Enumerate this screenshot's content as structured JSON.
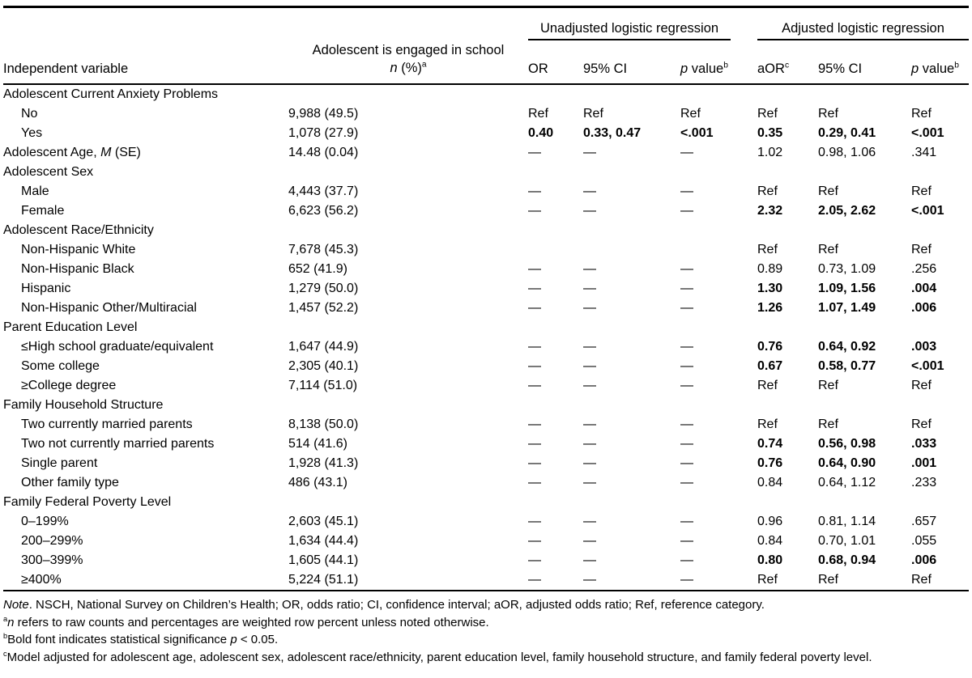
{
  "page": {
    "background": "#ffffff",
    "text_color": "#000000"
  },
  "table": {
    "header": {
      "independent_variable": "Independent variable",
      "engaged_line1": "Adolescent is engaged in school",
      "engaged_n_italic": "n",
      "engaged_rest": " (%)",
      "engaged_sup": "a",
      "group_unadjusted": "Unadjusted logistic regression",
      "group_adjusted": "Adjusted logistic regression",
      "or_label": "OR",
      "ci_label": "95% CI",
      "p_italic": "p",
      "p_rest": " value",
      "p_sup": "b",
      "aor_label": "aOR",
      "aor_sup": "c",
      "ci2_label": "95% CI",
      "p2_italic": "p",
      "p2_rest": " value",
      "p2_sup": "b"
    },
    "rows": [
      {
        "label": [
          {
            "t": "Adolescent Current Anxiety Problems"
          }
        ],
        "indent": false,
        "n": "",
        "u": [
          "",
          "",
          ""
        ],
        "a": [
          "",
          "",
          ""
        ],
        "bold_u": false,
        "bold_a": false
      },
      {
        "label": [
          {
            "t": "No"
          }
        ],
        "indent": true,
        "n": "9,988 (49.5)",
        "u": [
          "Ref",
          "Ref",
          "Ref"
        ],
        "a": [
          "Ref",
          "Ref",
          "Ref"
        ],
        "bold_u": false,
        "bold_a": false
      },
      {
        "label": [
          {
            "t": "Yes"
          }
        ],
        "indent": true,
        "n": "1,078 (27.9)",
        "u": [
          "0.40",
          "0.33, 0.47",
          "<.001"
        ],
        "a": [
          "0.35",
          "0.29, 0.41",
          "<.001"
        ],
        "bold_u": true,
        "bold_a": true
      },
      {
        "label": [
          {
            "t": "Adolescent Age, "
          },
          {
            "t": "M",
            "i": true
          },
          {
            "t": " (SE)"
          }
        ],
        "indent": false,
        "n": "14.48 (0.04)",
        "u": [
          "—",
          "—",
          "—"
        ],
        "a": [
          "1.02",
          "0.98, 1.06",
          ".341"
        ],
        "bold_u": false,
        "bold_a": false
      },
      {
        "label": [
          {
            "t": "Adolescent Sex"
          }
        ],
        "indent": false,
        "n": "",
        "u": [
          "",
          "",
          ""
        ],
        "a": [
          "",
          "",
          ""
        ],
        "bold_u": false,
        "bold_a": false
      },
      {
        "label": [
          {
            "t": "Male"
          }
        ],
        "indent": true,
        "n": "4,443 (37.7)",
        "u": [
          "—",
          "—",
          "—"
        ],
        "a": [
          "Ref",
          "Ref",
          "Ref"
        ],
        "bold_u": false,
        "bold_a": false
      },
      {
        "label": [
          {
            "t": "Female"
          }
        ],
        "indent": true,
        "n": "6,623 (56.2)",
        "u": [
          "—",
          "—",
          "—"
        ],
        "a": [
          "2.32",
          "2.05, 2.62",
          "<.001"
        ],
        "bold_u": false,
        "bold_a": true
      },
      {
        "label": [
          {
            "t": "Adolescent Race/Ethnicity"
          }
        ],
        "indent": false,
        "n": "",
        "u": [
          "",
          "",
          ""
        ],
        "a": [
          "",
          "",
          ""
        ],
        "bold_u": false,
        "bold_a": false
      },
      {
        "label": [
          {
            "t": "Non-Hispanic White"
          }
        ],
        "indent": true,
        "n": "7,678 (45.3)",
        "u": [
          "",
          "",
          ""
        ],
        "a": [
          "Ref",
          "Ref",
          "Ref"
        ],
        "bold_u": false,
        "bold_a": false
      },
      {
        "label": [
          {
            "t": "Non-Hispanic Black"
          }
        ],
        "indent": true,
        "n": "652 (41.9)",
        "u": [
          "—",
          "—",
          "—"
        ],
        "a": [
          "0.89",
          "0.73, 1.09",
          ".256"
        ],
        "bold_u": false,
        "bold_a": false
      },
      {
        "label": [
          {
            "t": "Hispanic"
          }
        ],
        "indent": true,
        "n": "1,279 (50.0)",
        "u": [
          "—",
          "—",
          "—"
        ],
        "a": [
          "1.30",
          "1.09, 1.56",
          ".004"
        ],
        "bold_u": false,
        "bold_a": true
      },
      {
        "label": [
          {
            "t": "Non-Hispanic Other/Multiracial"
          }
        ],
        "indent": true,
        "n": "1,457 (52.2)",
        "u": [
          "—",
          "—",
          "—"
        ],
        "a": [
          "1.26",
          "1.07, 1.49",
          ".006"
        ],
        "bold_u": false,
        "bold_a": true
      },
      {
        "label": [
          {
            "t": "Parent Education Level"
          }
        ],
        "indent": false,
        "n": "",
        "u": [
          "",
          "",
          ""
        ],
        "a": [
          "",
          "",
          ""
        ],
        "bold_u": false,
        "bold_a": false
      },
      {
        "label": [
          {
            "t": "≤High school graduate/equivalent"
          }
        ],
        "indent": true,
        "n": "1,647 (44.9)",
        "u": [
          "—",
          "—",
          "—"
        ],
        "a": [
          "0.76",
          "0.64, 0.92",
          ".003"
        ],
        "bold_u": false,
        "bold_a": true
      },
      {
        "label": [
          {
            "t": "Some college"
          }
        ],
        "indent": true,
        "n": "2,305 (40.1)",
        "u": [
          "—",
          "—",
          "—"
        ],
        "a": [
          "0.67",
          "0.58, 0.77",
          "<.001"
        ],
        "bold_u": false,
        "bold_a": true
      },
      {
        "label": [
          {
            "t": "≥College degree"
          }
        ],
        "indent": true,
        "n": "7,114 (51.0)",
        "u": [
          "—",
          "—",
          "—"
        ],
        "a": [
          "Ref",
          "Ref",
          "Ref"
        ],
        "bold_u": false,
        "bold_a": false
      },
      {
        "label": [
          {
            "t": "Family Household Structure"
          }
        ],
        "indent": false,
        "n": "",
        "u": [
          "",
          "",
          ""
        ],
        "a": [
          "",
          "",
          ""
        ],
        "bold_u": false,
        "bold_a": false
      },
      {
        "label": [
          {
            "t": "Two currently married parents"
          }
        ],
        "indent": true,
        "n": "8,138 (50.0)",
        "u": [
          "—",
          "—",
          "—"
        ],
        "a": [
          "Ref",
          "Ref",
          "Ref"
        ],
        "bold_u": false,
        "bold_a": false
      },
      {
        "label": [
          {
            "t": "Two not currently married parents"
          }
        ],
        "indent": true,
        "n": "514 (41.6)",
        "u": [
          "—",
          "—",
          "—"
        ],
        "a": [
          "0.74",
          "0.56, 0.98",
          ".033"
        ],
        "bold_u": false,
        "bold_a": true
      },
      {
        "label": [
          {
            "t": "Single parent"
          }
        ],
        "indent": true,
        "n": "1,928 (41.3)",
        "u": [
          "—",
          "—",
          "—"
        ],
        "a": [
          "0.76",
          "0.64, 0.90",
          ".001"
        ],
        "bold_u": false,
        "bold_a": true
      },
      {
        "label": [
          {
            "t": "Other family type"
          }
        ],
        "indent": true,
        "n": "486 (43.1)",
        "u": [
          "—",
          "—",
          "—"
        ],
        "a": [
          "0.84",
          "0.64, 1.12",
          ".233"
        ],
        "bold_u": false,
        "bold_a": false
      },
      {
        "label": [
          {
            "t": "Family Federal Poverty Level"
          }
        ],
        "indent": false,
        "n": "",
        "u": [
          "",
          "",
          ""
        ],
        "a": [
          "",
          "",
          ""
        ],
        "bold_u": false,
        "bold_a": false
      },
      {
        "label": [
          {
            "t": "0–199%"
          }
        ],
        "indent": true,
        "n": "2,603 (45.1)",
        "u": [
          "—",
          "—",
          "—"
        ],
        "a": [
          "0.96",
          "0.81, 1.14",
          ".657"
        ],
        "bold_u": false,
        "bold_a": false
      },
      {
        "label": [
          {
            "t": "200–299%"
          }
        ],
        "indent": true,
        "n": "1,634 (44.4)",
        "u": [
          "—",
          "—",
          "—"
        ],
        "a": [
          "0.84",
          "0.70, 1.01",
          ".055"
        ],
        "bold_u": false,
        "bold_a": false
      },
      {
        "label": [
          {
            "t": "300–399%"
          }
        ],
        "indent": true,
        "n": "1,605 (44.1)",
        "u": [
          "—",
          "—",
          "—"
        ],
        "a": [
          "0.80",
          "0.68, 0.94",
          ".006"
        ],
        "bold_u": false,
        "bold_a": true
      },
      {
        "label": [
          {
            "t": "≥400%"
          }
        ],
        "indent": true,
        "n": "5,224 (51.1)",
        "u": [
          "—",
          "—",
          "—"
        ],
        "a": [
          "Ref",
          "Ref",
          "Ref"
        ],
        "bold_u": false,
        "bold_a": false
      }
    ],
    "footnotes": [
      [
        {
          "t": "Note",
          "i": true
        },
        {
          "t": ". NSCH, National Survey on Children’s Health; OR, odds ratio; CI, confidence interval; aOR, adjusted odds ratio; Ref, reference category."
        }
      ],
      [
        {
          "t": "a",
          "sup": true
        },
        {
          "t": "n",
          "i": true
        },
        {
          "t": " refers to raw counts and percentages are weighted row percent unless noted otherwise."
        }
      ],
      [
        {
          "t": "b",
          "sup": true
        },
        {
          "t": "Bold font indicates statistical significance "
        },
        {
          "t": "p",
          "i": true
        },
        {
          "t": " < 0.05."
        }
      ],
      [
        {
          "t": "c",
          "sup": true
        },
        {
          "t": "Model adjusted for adolescent age, adolescent sex, adolescent race/ethnicity, parent education level, family household structure, and family federal poverty level."
        }
      ]
    ]
  }
}
